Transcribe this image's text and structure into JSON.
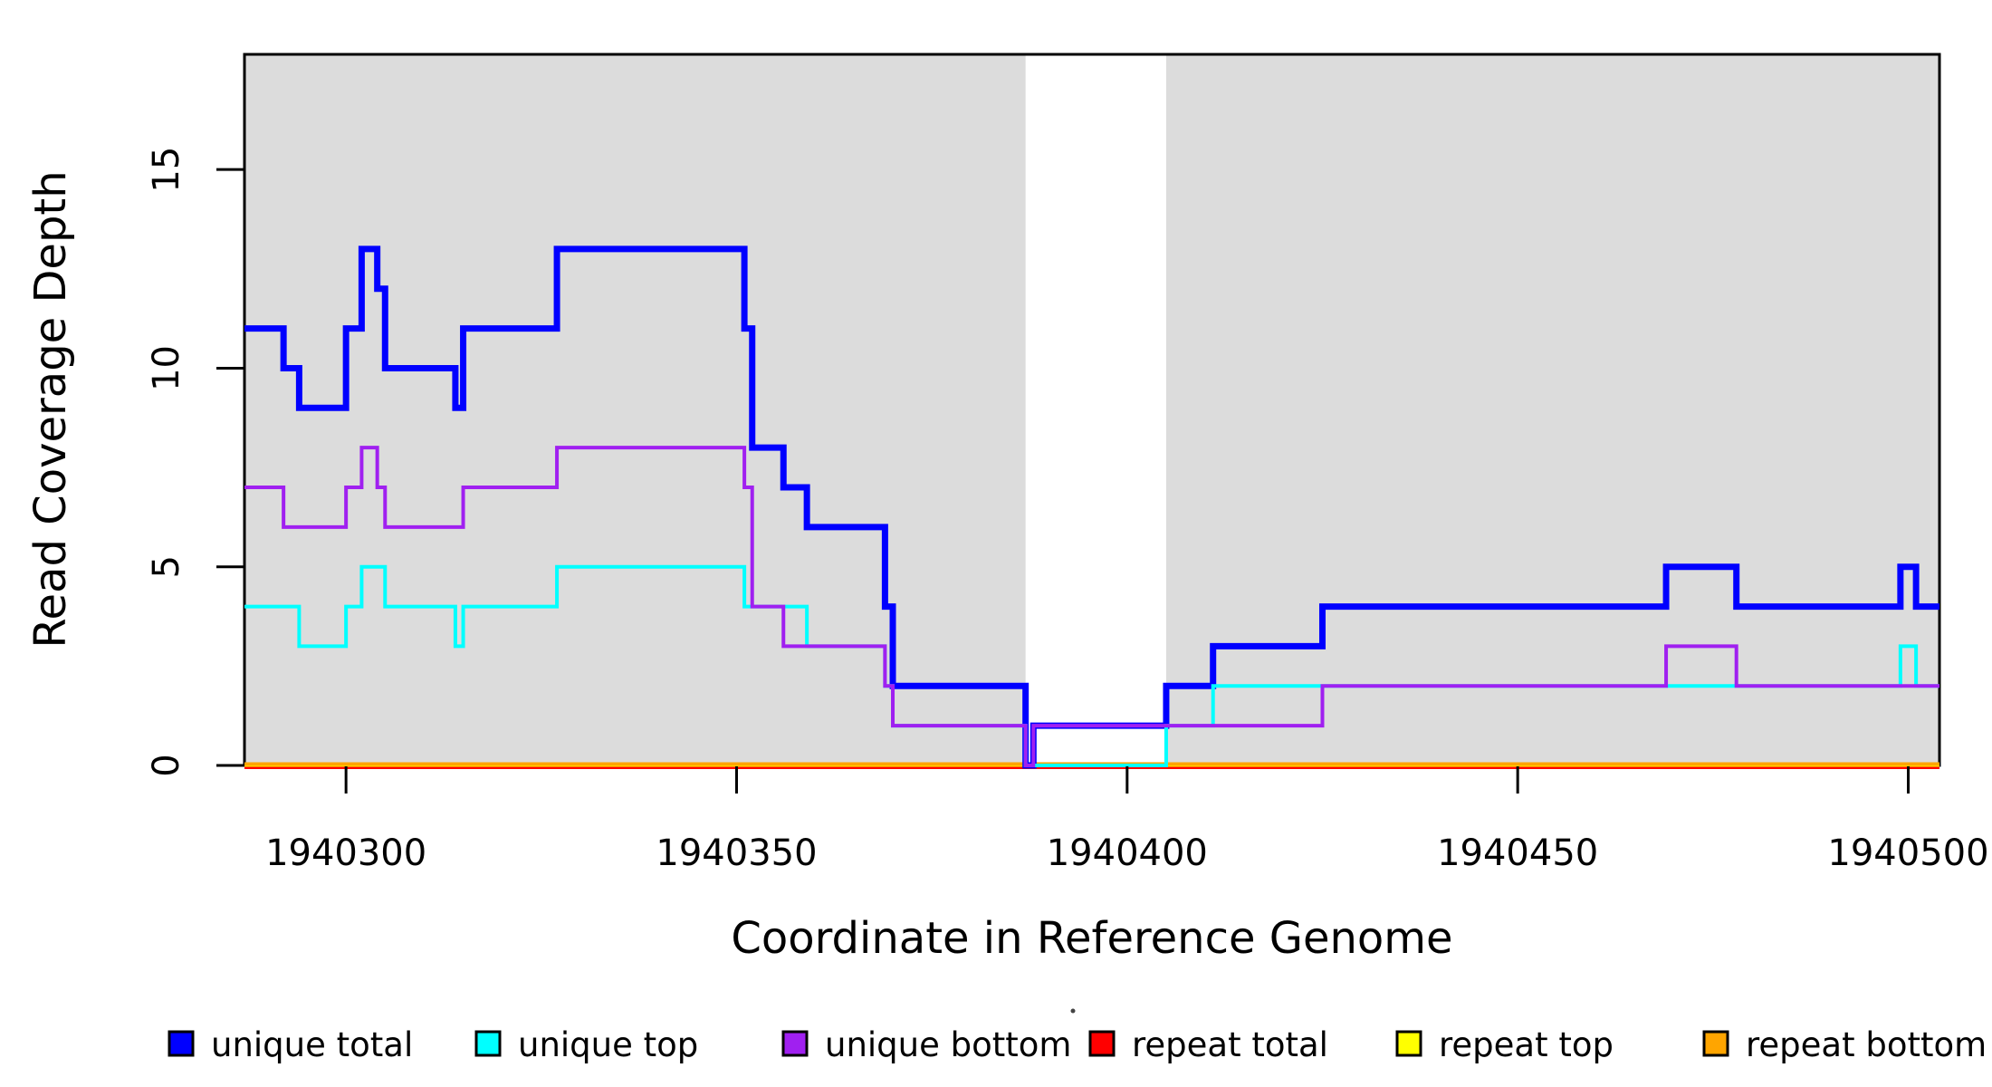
{
  "chart_data": {
    "type": "line",
    "subtype": "step",
    "title": "",
    "xlabel": "Coordinate in Reference Genome",
    "ylabel": "Read Coverage Depth",
    "xlim": [
      1940287,
      1940504
    ],
    "ylim": [
      0,
      17.9
    ],
    "x_ticks": [
      1940300,
      1940350,
      1940400,
      1940450,
      1940500
    ],
    "y_ticks": [
      0,
      5,
      10,
      15
    ],
    "grid": false,
    "legend_position": "bottom",
    "panel_background": "#ffffff",
    "shade_color": "#dcdcdc",
    "shaded_regions": [
      [
        1940287,
        1940387
      ],
      [
        1940405,
        1940504
      ]
    ],
    "white_gap_region": [
      1940387,
      1940405
    ],
    "series": [
      {
        "name": "repeat total",
        "color": "#ff0000",
        "line_width": 6,
        "steps": [
          [
            1940287,
            0
          ],
          [
            1940504,
            0
          ]
        ]
      },
      {
        "name": "repeat top",
        "color": "#ffff00",
        "line_width": 3,
        "steps": [
          [
            1940287,
            0
          ],
          [
            1940504,
            0
          ]
        ]
      },
      {
        "name": "repeat bottom",
        "color": "#ffa500",
        "line_width": 4,
        "steps": [
          [
            1940287,
            0
          ],
          [
            1940504,
            0
          ]
        ]
      },
      {
        "name": "unique total",
        "color": "#0000ff",
        "line_width": 7,
        "steps": [
          [
            1940287,
            11
          ],
          [
            1940292,
            10
          ],
          [
            1940294,
            9
          ],
          [
            1940300,
            11
          ],
          [
            1940302,
            13
          ],
          [
            1940304,
            12
          ],
          [
            1940305,
            10
          ],
          [
            1940314,
            9
          ],
          [
            1940315,
            11
          ],
          [
            1940327,
            13
          ],
          [
            1940351,
            11
          ],
          [
            1940352,
            8
          ],
          [
            1940356,
            7
          ],
          [
            1940359,
            6
          ],
          [
            1940369,
            4
          ],
          [
            1940370,
            2
          ],
          [
            1940387,
            0
          ],
          [
            1940388,
            1
          ],
          [
            1940405,
            2
          ],
          [
            1940411,
            3
          ],
          [
            1940425,
            4
          ],
          [
            1940469,
            5
          ],
          [
            1940478,
            4
          ],
          [
            1940499,
            5
          ],
          [
            1940501,
            4
          ],
          [
            1940504,
            4
          ]
        ]
      },
      {
        "name": "unique top",
        "color": "#00ffff",
        "line_width": 4,
        "steps": [
          [
            1940287,
            4
          ],
          [
            1940294,
            3
          ],
          [
            1940300,
            4
          ],
          [
            1940302,
            5
          ],
          [
            1940305,
            4
          ],
          [
            1940314,
            3
          ],
          [
            1940315,
            4
          ],
          [
            1940327,
            5
          ],
          [
            1940351,
            4
          ],
          [
            1940359,
            3
          ],
          [
            1940369,
            2
          ],
          [
            1940370,
            1
          ],
          [
            1940387,
            0
          ],
          [
            1940405,
            1
          ],
          [
            1940411,
            2
          ],
          [
            1940499,
            3
          ],
          [
            1940501,
            2
          ],
          [
            1940504,
            2
          ]
        ]
      },
      {
        "name": "unique bottom",
        "color": "#a020f0",
        "line_width": 4,
        "steps": [
          [
            1940287,
            7
          ],
          [
            1940292,
            6
          ],
          [
            1940300,
            7
          ],
          [
            1940302,
            8
          ],
          [
            1940304,
            7
          ],
          [
            1940305,
            6
          ],
          [
            1940315,
            7
          ],
          [
            1940327,
            8
          ],
          [
            1940351,
            7
          ],
          [
            1940352,
            4
          ],
          [
            1940356,
            3
          ],
          [
            1940369,
            2
          ],
          [
            1940370,
            1
          ],
          [
            1940387,
            0
          ],
          [
            1940388,
            1
          ],
          [
            1940425,
            2
          ],
          [
            1940469,
            3
          ],
          [
            1940478,
            2
          ],
          [
            1940504,
            2
          ]
        ]
      }
    ]
  },
  "legend": {
    "items": [
      {
        "label": "unique total",
        "color": "#0000ff"
      },
      {
        "label": "unique top",
        "color": "#00ffff"
      },
      {
        "label": "unique bottom",
        "color": "#a020f0"
      },
      {
        "label": "repeat total",
        "color": "#ff0000"
      },
      {
        "label": "repeat top",
        "color": "#ffff00"
      },
      {
        "label": "repeat bottom",
        "color": "#ffa500"
      }
    ]
  }
}
